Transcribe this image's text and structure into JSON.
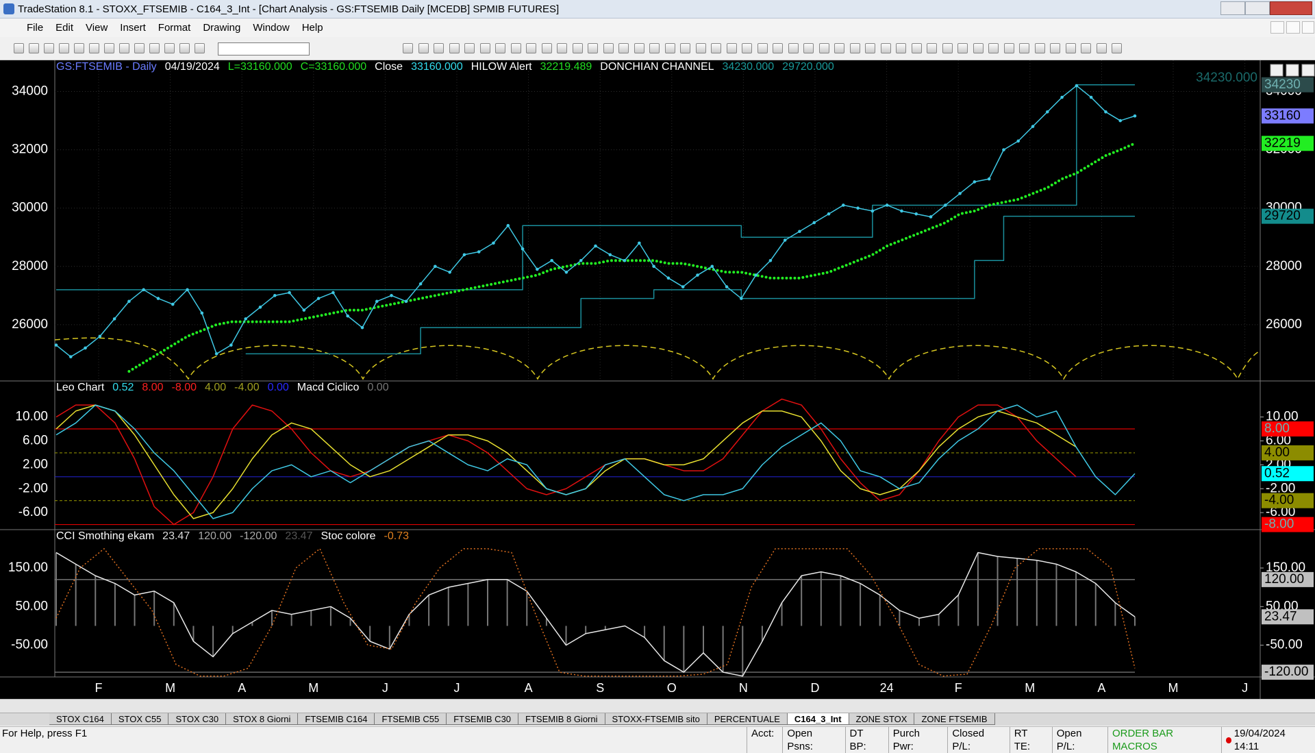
{
  "window": {
    "title": "TradeStation 8.1 - STOXX_FTSEMIB - C164_3_Int - [Chart Analysis - GS:FTSEMIB  Daily  [MCEDB] SPMIB FUTURES]",
    "menu": [
      "File",
      "Edit",
      "View",
      "Insert",
      "Format",
      "Drawing",
      "Window",
      "Help"
    ]
  },
  "tabs": {
    "items": [
      "STOX C164",
      "STOX C55",
      "STOX  C30",
      "STOX  8 Giorni",
      "FTSEMIB C164",
      "FTSEMIB C55",
      "FTSEMIB C30",
      "FTSEMIB  8 Giorni",
      "STOXX-FTSEMIB sito",
      "PERCENTUALE",
      "C164_3_Int",
      "ZONE STOX",
      "ZONE FTSEMIB"
    ],
    "active": 10
  },
  "status": {
    "help": "For Help, press F1",
    "fields": [
      "Acct:",
      "Open Psns:",
      "DT BP:",
      "Purch Pwr:",
      "Closed P/L:",
      "RT TE:",
      "Open P/L:"
    ],
    "macros": "ORDER BAR  MACROS",
    "datetime": "19/04/2024 14:11"
  },
  "x_axis": {
    "labels": [
      "F",
      "M",
      "A",
      "M",
      "J",
      "J",
      "A",
      "S",
      "O",
      "N",
      "D",
      "24",
      "F",
      "M",
      "A",
      "M",
      "J"
    ]
  },
  "chart_data": [
    {
      "type": "line",
      "header": [
        {
          "text": "GS:FTSEMIB - Daily",
          "color": "#6a7cff"
        },
        {
          "text": "04/19/2024",
          "color": "#ffffff"
        },
        {
          "text": "L=33160.000",
          "color": "#22dd22"
        },
        {
          "text": "C=33160.000",
          "color": "#22dd22"
        },
        {
          "text": "Close",
          "color": "#ffffff"
        },
        {
          "text": "33160.000",
          "color": "#33ddee"
        },
        {
          "text": "HILOW Alert",
          "color": "#ffffff"
        },
        {
          "text": "32219.489",
          "color": "#22dd22"
        },
        {
          "text": "DONCHIAN CHANNEL",
          "color": "#ffffff"
        },
        {
          "text": "34230.000",
          "color": "#1a9a9a"
        },
        {
          "text": "29720.000",
          "color": "#1a9a9a"
        }
      ],
      "annotation": "34230.000",
      "ylim": [
        24070,
        35070
      ],
      "yticks": [
        26000,
        28000,
        30000,
        32000,
        34000
      ],
      "grid": true,
      "series": [
        {
          "color": "#1a8f9c",
          "style": "step",
          "values": [
            27200,
            27200,
            27200,
            27200,
            27200,
            27200,
            27200,
            27200,
            27200,
            27200,
            27200,
            27200,
            27200,
            27200,
            27200,
            27200,
            27200,
            27200,
            27200,
            27200,
            27200,
            27200,
            27200,
            27200,
            27200,
            27200,
            27200,
            27200,
            27200,
            27200,
            27200,
            27200,
            29400,
            29400,
            29400,
            29400,
            29400,
            29400,
            29400,
            29400,
            29400,
            29400,
            29400,
            29400,
            29400,
            29400,
            29400,
            29000,
            29000,
            29000,
            29000,
            29000,
            29000,
            29000,
            29000,
            29000,
            30100,
            30100,
            30100,
            30100,
            30100,
            30100,
            30100,
            30100,
            30100,
            30100,
            30100,
            30100,
            30100,
            30100,
            34230,
            34230,
            34230,
            34230,
            34230
          ]
        },
        {
          "color": "#1a8f9c",
          "style": "step",
          "values": [
            null,
            null,
            null,
            null,
            null,
            null,
            null,
            null,
            null,
            null,
            null,
            null,
            null,
            25000,
            25000,
            25000,
            25000,
            25000,
            25000,
            25000,
            25000,
            25000,
            25000,
            25000,
            25000,
            25900,
            25900,
            25900,
            25900,
            25900,
            25900,
            25900,
            25900,
            25900,
            25900,
            25900,
            26900,
            26900,
            26900,
            26900,
            26900,
            27200,
            27200,
            27200,
            27200,
            27200,
            27200,
            26900,
            26900,
            26900,
            26900,
            26900,
            26900,
            26900,
            26900,
            26900,
            26900,
            26900,
            26900,
            26900,
            26900,
            26900,
            26900,
            28200,
            28200,
            29720,
            29720,
            29720,
            29720,
            29720,
            29720,
            29720,
            29720,
            29720,
            29720
          ]
        },
        {
          "color": "#22ee22",
          "style": "dots",
          "values": [
            null,
            null,
            null,
            null,
            null,
            24400,
            24700,
            25000,
            25300,
            25600,
            25800,
            26000,
            26100,
            26100,
            26100,
            26100,
            26100,
            26200,
            26300,
            26400,
            26500,
            26500,
            26600,
            26700,
            26800,
            26900,
            27000,
            27100,
            27200,
            27300,
            27400,
            27500,
            27600,
            27700,
            27900,
            28000,
            28100,
            28100,
            28200,
            28200,
            28200,
            28200,
            28100,
            28100,
            28000,
            27900,
            27800,
            27800,
            27700,
            27600,
            27600,
            27600,
            27700,
            27800,
            28000,
            28200,
            28400,
            28700,
            28900,
            29100,
            29300,
            29500,
            29800,
            29900,
            30100,
            30200,
            30300,
            30500,
            30700,
            31000,
            31200,
            31500,
            31800,
            32000,
            32219
          ]
        },
        {
          "color": "#3fc8e4",
          "style": "markers",
          "values": [
            25300,
            24900,
            25200,
            25600,
            26200,
            26800,
            27200,
            26900,
            26700,
            27200,
            26400,
            25000,
            25300,
            26200,
            26600,
            27000,
            27100,
            26500,
            26900,
            27100,
            26300,
            25900,
            26800,
            27000,
            26800,
            27400,
            28000,
            27800,
            28400,
            28500,
            28800,
            29400,
            28600,
            27900,
            28200,
            27800,
            28200,
            28700,
            28400,
            28200,
            28800,
            28000,
            27600,
            27300,
            27700,
            28000,
            27300,
            26900,
            27700,
            28200,
            28900,
            29200,
            29500,
            29800,
            30100,
            30000,
            29900,
            30100,
            29900,
            29800,
            29700,
            30100,
            30500,
            30900,
            31000,
            32000,
            32300,
            32800,
            33300,
            33800,
            34200,
            33800,
            33300,
            33000,
            33160
          ]
        }
      ],
      "tags": [
        {
          "value": 34230,
          "color": "#2c4b4b"
        },
        {
          "value": 33160,
          "color": "#7c7cff"
        },
        {
          "value": 32219,
          "color": "#22ee22"
        },
        {
          "value": 29720,
          "color": "#138c8c"
        }
      ]
    },
    {
      "type": "line",
      "header": [
        {
          "text": "Leo Chart",
          "color": "#ffffff"
        },
        {
          "text": "0.52",
          "color": "#33ddee"
        },
        {
          "text": "8.00",
          "color": "#ff2020"
        },
        {
          "text": "-8.00",
          "color": "#ff2020"
        },
        {
          "text": "4.00",
          "color": "#a0a020"
        },
        {
          "text": "-4.00",
          "color": "#a0a020"
        },
        {
          "text": "0.00",
          "color": "#2a2aff"
        },
        {
          "text": "Macd Ciclico",
          "color": "#ffffff"
        },
        {
          "text": "0.00",
          "color": "#777777"
        }
      ],
      "ylim": [
        -8.85,
        16.03
      ],
      "yticks": [
        {
          "value": -6,
          "label": "-6.00"
        },
        {
          "value": -2,
          "label": "-2.00"
        },
        {
          "value": 2,
          "label": "2.00"
        },
        {
          "value": 6,
          "label": "6.00"
        },
        {
          "value": 10,
          "label": "10.00"
        }
      ],
      "levels": [
        {
          "value": 8,
          "color": "#e00000"
        },
        {
          "value": 4,
          "color": "#8c8c00"
        },
        {
          "value": 0,
          "color": "#2020c0"
        },
        {
          "value": -4,
          "color": "#8c8c00"
        },
        {
          "value": -8,
          "color": "#e00000"
        }
      ],
      "series": [
        {
          "color": "#e01010",
          "style": "line",
          "values": [
            10,
            12,
            12,
            9,
            3,
            -5,
            -8,
            -6,
            0,
            8,
            12,
            11,
            8,
            4,
            1,
            0,
            1,
            3,
            5,
            6,
            7,
            6,
            4,
            1,
            -2,
            -3,
            -2,
            0,
            2,
            3,
            3,
            2,
            1,
            1,
            3,
            7,
            11,
            13,
            12,
            8,
            3,
            -1,
            -4,
            -3,
            1,
            6,
            10,
            12,
            12,
            10,
            6,
            3,
            0,
            null,
            null,
            null
          ]
        },
        {
          "color": "#e8e030",
          "style": "line",
          "values": [
            8,
            11,
            12,
            11,
            7,
            2,
            -3,
            -7,
            -6,
            -2,
            3,
            7,
            9,
            8,
            5,
            2,
            0,
            1,
            3,
            5,
            7,
            7,
            6,
            4,
            1,
            -2,
            -3,
            -2,
            1,
            3,
            3,
            2,
            2,
            3,
            6,
            9,
            11,
            11,
            10,
            6,
            1,
            -2,
            -3,
            -2,
            1,
            5,
            8,
            10,
            11,
            10,
            9,
            7,
            5,
            null,
            null,
            null
          ]
        },
        {
          "color": "#3fc8e4",
          "style": "line",
          "values": [
            7,
            9,
            12,
            11,
            8,
            4,
            1,
            -3,
            -7,
            -6,
            -2,
            1,
            2,
            0,
            1,
            -1,
            1,
            3,
            5,
            6,
            4,
            2,
            1,
            3,
            2,
            -2,
            -3,
            -2,
            2,
            3,
            0,
            -3,
            -4,
            -3,
            -3,
            -2,
            2,
            5,
            7,
            9,
            6,
            1,
            0,
            -2,
            -1,
            3,
            6,
            8,
            11,
            12,
            10,
            11,
            5,
            0,
            -3,
            0.52
          ]
        }
      ],
      "tags": [
        {
          "value": 8,
          "label": "8.00",
          "color": "#ff0000"
        },
        {
          "value": 4,
          "label": "4.00",
          "color": "#8c8c00"
        },
        {
          "value": 0.52,
          "label": "0.52",
          "color": "#00ffff"
        },
        {
          "value": -4,
          "label": "-4.00",
          "color": "#8c8c00"
        },
        {
          "value": -8,
          "label": "-8.00",
          "color": "#ff0000"
        }
      ]
    },
    {
      "type": "line",
      "header": [
        {
          "text": "CCI Smothing ekam",
          "color": "#ffffff"
        },
        {
          "text": "23.47",
          "color": "#dddddd"
        },
        {
          "text": "120.00",
          "color": "#aaaaaa"
        },
        {
          "text": "-120.00",
          "color": "#aaaaaa"
        },
        {
          "text": "23.47",
          "color": "#555555"
        },
        {
          "text": "Stoc colore",
          "color": "#ffffff"
        },
        {
          "text": "-0.73",
          "color": "#e08020"
        }
      ],
      "ylim": [
        -132.3,
        249.4
      ],
      "yticks": [
        {
          "value": -50,
          "label": "-50.00"
        },
        {
          "value": 50,
          "label": "50.00"
        },
        {
          "value": 150,
          "label": "150.00"
        }
      ],
      "levels": [
        {
          "value": 120,
          "color": "#8a8a8a"
        },
        {
          "value": -120,
          "color": "#8a8a8a"
        }
      ],
      "series": [
        {
          "color": "#e8e8e8",
          "style": "histogram",
          "values": [
            190,
            160,
            130,
            110,
            80,
            90,
            60,
            -40,
            -80,
            -20,
            10,
            40,
            30,
            40,
            50,
            20,
            -40,
            -60,
            30,
            80,
            100,
            110,
            120,
            120,
            90,
            20,
            -50,
            -20,
            -10,
            0,
            -30,
            -90,
            -120,
            -70,
            -120,
            -130,
            -40,
            60,
            130,
            140,
            130,
            110,
            80,
            40,
            20,
            30,
            80,
            190,
            180,
            175,
            170,
            160,
            140,
            110,
            60,
            23.47
          ]
        },
        {
          "color": "#e07020",
          "style": "dotted",
          "values": [
            20,
            150,
            200,
            120,
            40,
            -100,
            -130,
            -130,
            -110,
            0,
            150,
            200,
            60,
            -50,
            -60,
            60,
            150,
            200,
            200,
            190,
            30,
            -120,
            -130,
            -130,
            -130,
            -130,
            -130,
            -125,
            -100,
            100,
            200,
            200,
            200,
            200,
            130,
            20,
            -100,
            -130,
            -125,
            0,
            150,
            200,
            200,
            200,
            150,
            -110
          ]
        }
      ],
      "tags": [
        {
          "value": 120,
          "label": "120.00",
          "color": "#c0c0c0"
        },
        {
          "value": 23.47,
          "label": "23.47",
          "color": "#c0c0c0"
        },
        {
          "value": -120,
          "label": "-120.00",
          "color": "#c0c0c0"
        }
      ]
    }
  ]
}
